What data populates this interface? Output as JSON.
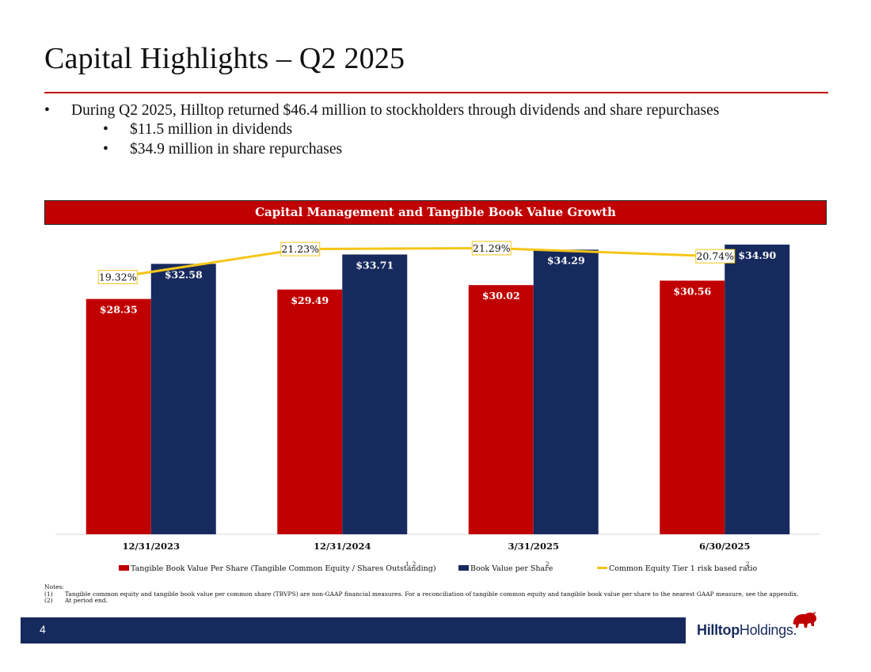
{
  "slide": {
    "title": "Capital Highlights – Q2 2025",
    "page_number": "4",
    "bullets": {
      "main": "During Q2 2025, Hilltop returned $46.4 million to stockholders through dividends and share repurchases",
      "sub": [
        "$11.5 million in dividends",
        "$34.9 million in share repurchases"
      ]
    },
    "notes": {
      "heading": "Notes:",
      "items": [
        {
          "num": "(1)",
          "text": "Tangible common equity and tangible book value per common share (TBVPS) are non-GAAP financial measures. For a reconciliation of tangible common equity and tangible book value per share to the nearest GAAP measure, see the appendix."
        },
        {
          "num": "(2)",
          "text": "At period end."
        }
      ]
    },
    "logo": {
      "bold": "Hilltop",
      "regular": "Holdings."
    },
    "colors": {
      "red": "#c00000",
      "navy": "#172a5e",
      "gold": "#f5c518"
    }
  },
  "chart_data": {
    "type": "bar",
    "title": "Capital Management and Tangible Book Value Growth",
    "categories": [
      "12/31/2023",
      "12/31/2024",
      "3/31/2025",
      "6/30/2025"
    ],
    "series": [
      {
        "name": "Tangible Book Value Per Share (Tangible Common Equity / Shares Outstanding)",
        "superscript": "1, 2",
        "values": [
          28.35,
          29.49,
          30.02,
          30.56
        ],
        "labels": [
          "$28.35",
          "$29.49",
          "$30.02",
          "$30.56"
        ],
        "color": "#c00000"
      },
      {
        "name": "Book Value per Share",
        "superscript": "2",
        "values": [
          32.58,
          33.71,
          34.29,
          34.9
        ],
        "labels": [
          "$32.58",
          "$33.71",
          "$34.29",
          "$34.90"
        ],
        "color": "#172a5e"
      }
    ],
    "line_series": {
      "name": "Common Equity Tier 1 risk based ratio",
      "superscript": "2",
      "type": "line",
      "values": [
        19.32,
        21.23,
        21.29,
        20.74
      ],
      "labels": [
        "19.32%",
        "21.23%",
        "21.29%",
        "20.74%"
      ],
      "color": "#f5c518"
    },
    "ylim": [
      0,
      36
    ],
    "grid": false,
    "legend_position": "bottom"
  }
}
